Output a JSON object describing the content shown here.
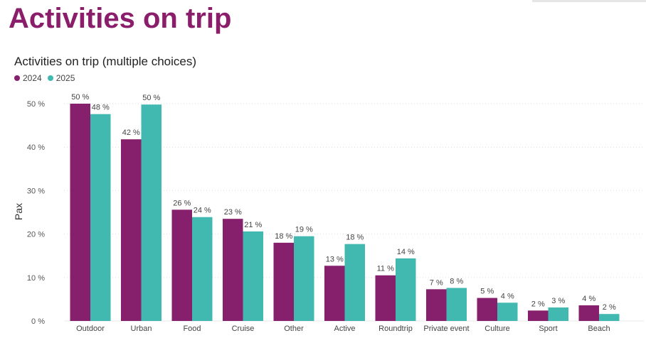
{
  "page": {
    "title": "Activities on trip"
  },
  "chart_data": {
    "type": "bar",
    "title": "Activities on trip (multiple choices)",
    "xlabel": "",
    "ylabel": "Pax",
    "ylim": [
      0,
      50
    ],
    "yticks": [
      "0 %",
      "10 %",
      "20 %",
      "30 %",
      "40 %",
      "50 %"
    ],
    "grid": true,
    "legend_position": "top-left",
    "categories": [
      "Outdoor",
      "Urban",
      "Food",
      "Cruise",
      "Other",
      "Active",
      "Roundtrip",
      "Private event",
      "Culture",
      "Sport",
      "Beach"
    ],
    "series": [
      {
        "name": "2024",
        "color": "#86206C",
        "values": [
          50,
          42,
          26,
          23,
          18,
          13,
          11,
          7,
          5,
          2,
          4
        ],
        "plot_values": [
          50,
          41.8,
          25.6,
          23.5,
          18,
          12.7,
          10.5,
          7.3,
          5.3,
          2.4,
          3.6
        ],
        "labels": [
          "50 %",
          "42 %",
          "26 %",
          "23 %",
          "18 %",
          "13 %",
          "11 %",
          "7 %",
          "5 %",
          "2 %",
          "4 %"
        ]
      },
      {
        "name": "2025",
        "color": "#41B8B0",
        "values": [
          48,
          50,
          24,
          21,
          19,
          18,
          14,
          8,
          4,
          3,
          2
        ],
        "plot_values": [
          47.6,
          49.8,
          23.9,
          20.6,
          19.5,
          17.7,
          14.4,
          7.6,
          4.2,
          3.1,
          1.6
        ],
        "labels": [
          "48 %",
          "50 %",
          "24 %",
          "21 %",
          "19 %",
          "18 %",
          "14 %",
          "8 %",
          "4 %",
          "3 %",
          "2 %"
        ]
      }
    ]
  }
}
